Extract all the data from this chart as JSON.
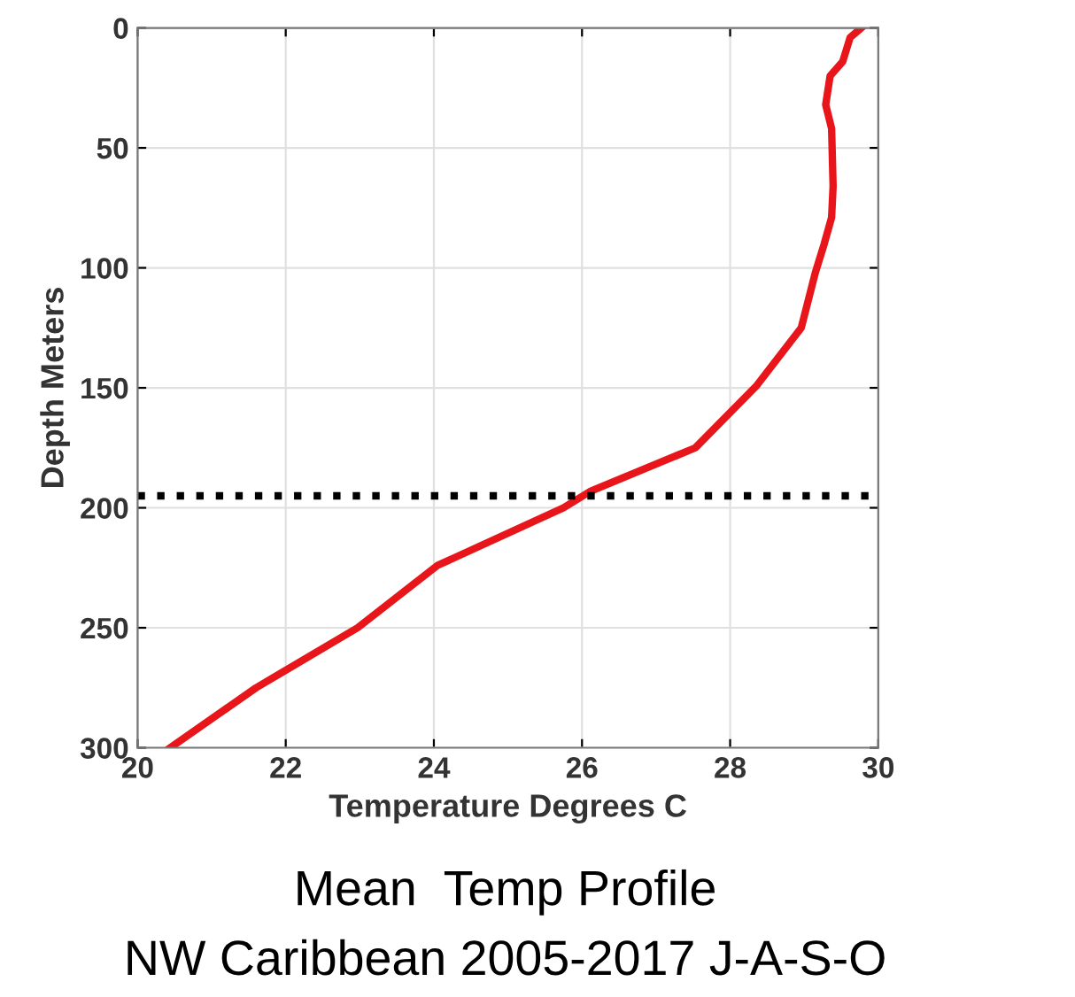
{
  "chart_data": {
    "type": "line",
    "title": "Mean  Temp Profile",
    "subtitle": "NW Caribbean 2005-2017 J-A-S-O",
    "xlabel": "Temperature Degrees C",
    "ylabel": "Depth Meters",
    "series": [
      {
        "color": "#e8161b",
        "x": [
          29.77,
          29.62,
          29.52,
          29.35,
          29.29,
          29.37,
          29.39,
          29.37,
          29.27,
          29.15,
          28.96,
          28.36,
          27.53,
          26.12,
          25.75,
          24.05,
          22.97,
          21.6,
          20.44
        ],
        "values": [
          0,
          4,
          14,
          20,
          32,
          42,
          66,
          79,
          90,
          102,
          125,
          149,
          175,
          193,
          200,
          224,
          250,
          275,
          300
        ]
      }
    ],
    "xlim": [
      20,
      30
    ],
    "xticks": [
      20,
      22,
      24,
      26,
      28,
      30
    ],
    "ylim": [
      300,
      0
    ],
    "yticks": [
      0,
      50,
      100,
      150,
      200,
      250,
      300
    ],
    "grid": true,
    "line_style": "solid",
    "marker": "none",
    "ref_lines": [
      {
        "axis": "y",
        "value": 195,
        "color": "#000000",
        "line_style": "dotted"
      }
    ]
  }
}
